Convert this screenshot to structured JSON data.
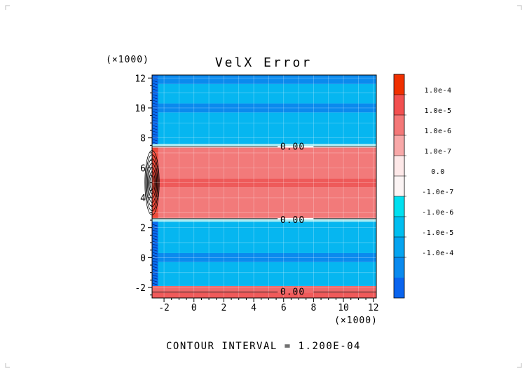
{
  "chart_data": {
    "type": "heatmap",
    "title": "VelX Error",
    "x_scale_label": "(×1000)",
    "y_scale_label": "(×1000)",
    "xlim": [
      -2.8,
      12.2
    ],
    "ylim": [
      -2.7,
      12.2
    ],
    "x_ticks": [
      -2,
      0,
      2,
      4,
      6,
      8,
      10,
      12
    ],
    "y_ticks": [
      -2,
      0,
      2,
      4,
      6,
      8,
      10,
      12
    ],
    "x_tick_labels": [
      "-2",
      "0",
      "2",
      "4",
      "6",
      "8",
      "10",
      "12"
    ],
    "y_tick_labels": [
      "-2",
      "0",
      "2",
      "4",
      "6",
      "8",
      "10",
      "12"
    ],
    "bands": [
      {
        "y0": -2.7,
        "y1": -2.35,
        "color": "#f05a5a"
      },
      {
        "y0": -2.35,
        "y1": -1.9,
        "color": "#ee6a6a"
      },
      {
        "y0": -1.9,
        "y1": -0.3,
        "color": "#06b6f0"
      },
      {
        "y0": -0.3,
        "y1": 0.3,
        "color": "#0a8aee"
      },
      {
        "y0": 0.3,
        "y1": 2.4,
        "color": "#06b6f0"
      },
      {
        "y0": 2.4,
        "y1": 2.55,
        "color": "#a8ecf4"
      },
      {
        "y0": 2.55,
        "y1": 2.65,
        "color": "#ffffff"
      },
      {
        "y0": 2.65,
        "y1": 4.7,
        "color": "#f27a7a"
      },
      {
        "y0": 4.7,
        "y1": 5.3,
        "color": "#ee5a5a"
      },
      {
        "y0": 5.3,
        "y1": 7.35,
        "color": "#f27a7a"
      },
      {
        "y0": 7.35,
        "y1": 7.45,
        "color": "#ffffff"
      },
      {
        "y0": 7.45,
        "y1": 7.6,
        "color": "#a8ecf4"
      },
      {
        "y0": 7.6,
        "y1": 9.7,
        "color": "#06b6f0"
      },
      {
        "y0": 9.7,
        "y1": 10.3,
        "color": "#0a8aee"
      },
      {
        "y0": 10.3,
        "y1": 11.6,
        "color": "#06b6f0"
      },
      {
        "y0": 11.6,
        "y1": 12.2,
        "color": "#0a8aee"
      }
    ],
    "edge_strip": {
      "x0": -2.8,
      "x1": -2.4
    },
    "contour_labels": [
      {
        "x": 6.6,
        "y": 7.45,
        "text": "0.00"
      },
      {
        "x": 6.6,
        "y": 2.55,
        "text": "0.00"
      },
      {
        "x": 6.6,
        "y": -2.25,
        "text": "0.00"
      }
    ],
    "colorbar": {
      "levels": [
        {
          "label": "1.0e-4",
          "color": "#f03000"
        },
        {
          "label": "1.0e-5",
          "color": "#f25050"
        },
        {
          "label": "1.0e-6",
          "color": "#f47878"
        },
        {
          "label": "1.0e-7",
          "color": "#f8a8a8"
        },
        {
          "label": "0.0",
          "color": "#fde8e8"
        },
        {
          "label": "-1.0e-7",
          "color": "#fbf4f4"
        },
        {
          "label": "-1.0e-6",
          "color": "#00e0f0"
        },
        {
          "label": "-1.0e-5",
          "color": "#00bef0"
        },
        {
          "label": "-1.0e-4",
          "color": "#05a4f0"
        },
        {
          "label": "",
          "color": "#0a8aee"
        },
        {
          "label": "",
          "color": "#0a64ee"
        }
      ]
    },
    "footer": "CONTOUR INTERVAL = 1.200E-04"
  }
}
